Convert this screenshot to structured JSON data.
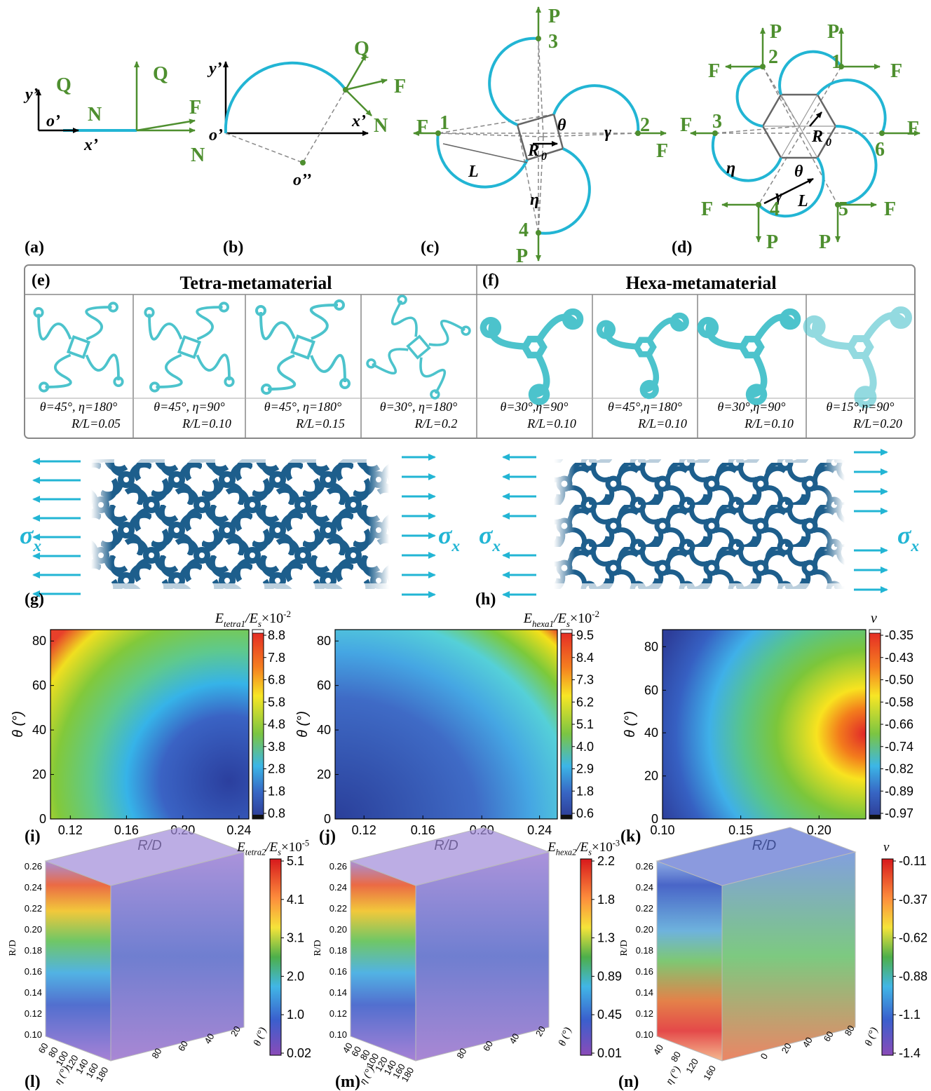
{
  "panel_labels": [
    "(a)",
    "(b)",
    "(c)",
    "(d)",
    "(e)",
    "(f)",
    "(g)",
    "(h)",
    "(i)",
    "(j)",
    "(k)",
    "(l)",
    "(m)",
    "(n)"
  ],
  "a": {
    "labels": [
      "y’",
      "Q",
      "o’",
      "N",
      "x’",
      "Q",
      "F",
      "N"
    ]
  },
  "b": {
    "labels": [
      "y’",
      "o’",
      "x’",
      "o’’",
      "Q",
      "F",
      "N"
    ]
  },
  "c": {
    "labels": [
      "P",
      "3",
      "F",
      "1",
      "L",
      "R",
      "0",
      "θ",
      "γ",
      "2",
      "F",
      "η",
      "4",
      "P"
    ]
  },
  "d": {
    "labels": [
      "P",
      "2",
      "F",
      "P",
      "1",
      "F",
      "F",
      "3",
      "R",
      "0",
      "F",
      "6",
      "η",
      "θ",
      "γ",
      "L",
      "F",
      "4",
      "5",
      "F",
      "P",
      "P"
    ]
  },
  "e": {
    "title": "Tetra-metamaterial",
    "cells": [
      [
        "θ=45°, η=180°",
        "R/L=0.05"
      ],
      [
        "θ=45°, η=90°",
        "R/L=0.10"
      ],
      [
        "θ=45°, η=180°",
        "R/L=0.15"
      ],
      [
        "θ=30°, η=180°",
        "R/L=0.2"
      ]
    ]
  },
  "f": {
    "title": "Hexa-metamaterial",
    "cells": [
      [
        "θ=30°,η=90°",
        "R/L=0.10"
      ],
      [
        "θ=45°,η=180°",
        "R/L=0.10"
      ],
      [
        "θ=30°,η=90°",
        "R/L=0.10"
      ],
      [
        "θ=15°,η=90°",
        "R/L=0.20"
      ]
    ]
  },
  "g": {
    "stress_left": [
      "σ",
      "x"
    ],
    "stress_right": [
      "σ",
      "x"
    ]
  },
  "h": {
    "stress_left": [
      "σ",
      "x"
    ],
    "stress_right": [
      "σ",
      "x"
    ]
  },
  "i": {
    "title": [
      "E",
      "tetra1",
      "/E",
      "s"
    ],
    "multiplier": [
      "×10",
      "-2"
    ],
    "ylabel": "θ (°)",
    "xlabel": "R/D",
    "yticks": [
      "0",
      "20",
      "40",
      "60",
      "80"
    ],
    "xticks": [
      "0.12",
      "0.16",
      "0.20",
      "0.24"
    ],
    "cbar": [
      "8.8",
      "7.8",
      "6.8",
      "5.8",
      "4.8",
      "3.8",
      "2.8",
      "1.8",
      "0.8"
    ]
  },
  "j": {
    "title": [
      "E",
      "hexa1",
      "/E",
      "s"
    ],
    "multiplier": [
      "×10",
      "-2"
    ],
    "ylabel": "θ (°)",
    "xlabel": "R/D",
    "yticks": [
      "0",
      "20",
      "40",
      "60",
      "80"
    ],
    "xticks": [
      "0.12",
      "0.16",
      "0.20",
      "0.24"
    ],
    "cbar": [
      "9.5",
      "8.4",
      "7.3",
      "6.2",
      "5.1",
      "4.0",
      "2.9",
      "1.8",
      "0.6"
    ]
  },
  "k": {
    "title": [
      "ν"
    ],
    "ylabel": "θ (°)",
    "xlabel": "R/D",
    "yticks": [
      "0",
      "20",
      "40",
      "60",
      "80"
    ],
    "xticks": [
      "0.10",
      "0.15",
      "0.20"
    ],
    "cbar": [
      "-0.35",
      "-0.43",
      "-0.50",
      "-0.58",
      "-0.66",
      "-0.74",
      "-0.82",
      "-0.89",
      "-0.97"
    ]
  },
  "l": {
    "title": [
      "E",
      "tetra2",
      "/E",
      "s"
    ],
    "multiplier": [
      "×10",
      "-5"
    ],
    "zlabel": "R/D",
    "zticks": [
      "0.26",
      "0.24",
      "0.22",
      "0.20",
      "0.18",
      "0.16",
      "0.14",
      "0.12",
      "0.10"
    ],
    "xlabel": "η (°)",
    "xticks": [
      "60",
      "80",
      "100",
      "120",
      "140",
      "160",
      "180"
    ],
    "ylabel": "θ (°)",
    "yticks": [
      "20",
      "40",
      "60",
      "80"
    ],
    "cbar": [
      "5.1",
      "4.1",
      "3.1",
      "2.0",
      "1.0",
      "0.02"
    ]
  },
  "m": {
    "title": [
      "E",
      "hexa2",
      "/E",
      "s"
    ],
    "multiplier": [
      "×10",
      "-3"
    ],
    "zlabel": "R/D",
    "zticks": [
      "0.26",
      "0.24",
      "0.22",
      "0.20",
      "0.18",
      "0.16",
      "0.14",
      "0.12",
      "0.10"
    ],
    "xlabel": "η (°)",
    "xticks": [
      "40",
      "60",
      "80",
      "100",
      "120",
      "140",
      "160",
      "180"
    ],
    "ylabel": "θ (°)",
    "yticks": [
      "20",
      "40",
      "60",
      "80"
    ],
    "cbar": [
      "2.2",
      "1.8",
      "1.3",
      "0.89",
      "0.45",
      "0.01"
    ]
  },
  "n": {
    "title": [
      "ν"
    ],
    "zlabel": "R/D",
    "zticks": [
      "0.26",
      "0.24",
      "0.22",
      "0.20",
      "0.18",
      "0.16",
      "0.14",
      "0.12",
      "0.10"
    ],
    "xlabel": "η (°)",
    "xticks": [
      "40",
      "80",
      "120",
      "160"
    ],
    "ylabel": "θ (°)",
    "yticks": [
      "80",
      "60",
      "40",
      "20",
      "0"
    ],
    "cbar": [
      "-0.11",
      "-0.37",
      "-0.62",
      "-0.88",
      "-1.1",
      "-1.4"
    ]
  }
}
